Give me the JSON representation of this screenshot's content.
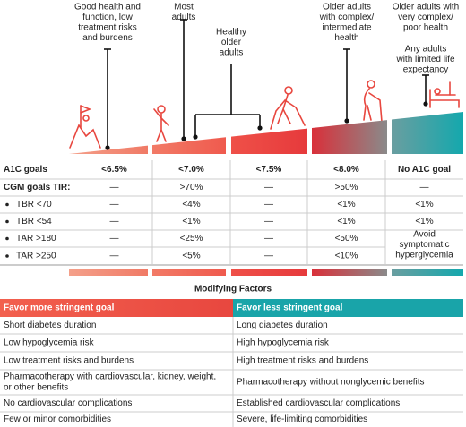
{
  "labels": [
    [
      "Good health and",
      "function, low",
      "treatment risks",
      "and burdens"
    ],
    [
      "Most",
      "adults"
    ],
    [
      "Healthy",
      "older",
      "adults"
    ],
    [
      "Older adults",
      "with complex/",
      "intermediate",
      "health"
    ],
    [
      "Older adults with",
      "very complex/",
      "poor health"
    ],
    [
      "Any adults",
      "with limited life",
      "expectancy"
    ]
  ],
  "goals_table": {
    "rows": [
      {
        "label": "A1C goals",
        "cells": [
          "<6.5%",
          "<7.0%",
          "<7.5%",
          "<8.0%",
          "No A1C goal"
        ]
      },
      {
        "label": "CGM goals TIR:",
        "cells": [
          "—",
          ">70%",
          "—",
          ">50%",
          "—"
        ]
      },
      {
        "label": "TBR <70",
        "cells": [
          "—",
          "<4%",
          "—",
          "<1%",
          "<1%"
        ]
      },
      {
        "label": "TBR <54",
        "cells": [
          "—",
          "<1%",
          "—",
          "<1%",
          "<1%"
        ]
      },
      {
        "label": "TAR >180",
        "cells": [
          "—",
          "<25%",
          "—",
          "<50%"
        ]
      },
      {
        "label": "TAR >250",
        "cells": [
          "—",
          "<5%",
          "—",
          "<10%"
        ]
      }
    ],
    "merged_cell": [
      "Avoid",
      "symptomatic",
      "hyperglycemia"
    ]
  },
  "modifying_factors": {
    "title": "Modifying Factors",
    "headers": [
      "Favor more stringent goal",
      "Favor less stringent goal"
    ],
    "rows": [
      [
        [
          "Short diabetes duration"
        ],
        [
          "Long diabetes duration"
        ]
      ],
      [
        [
          "Low hypoglycemia risk"
        ],
        [
          "High hypoglycemia risk"
        ]
      ],
      [
        [
          "Low treatment risks and burdens"
        ],
        [
          "High treatment risks and burdens"
        ]
      ],
      [
        [
          "Pharmacotherapy with cardiovascular, kidney, weight,",
          "or other benefits"
        ],
        [
          "Pharmacotherapy without nonglycemic benefits"
        ]
      ],
      [
        [
          "No cardiovascular complications"
        ],
        [
          "Established cardiovascular complications"
        ]
      ],
      [
        [
          "Few or minor comorbidities"
        ],
        [
          "Severe, life-limiting comorbidities"
        ]
      ]
    ]
  }
}
